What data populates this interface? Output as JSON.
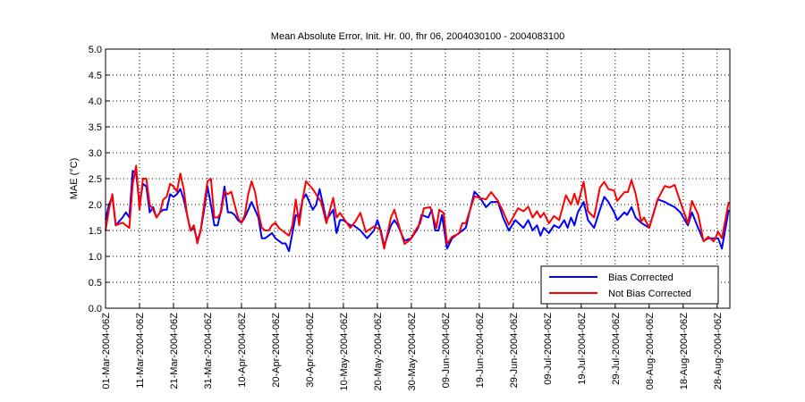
{
  "chart_data": {
    "type": "line",
    "title": "Mean Absolute Error, Init. Hr. 00, fhr 06, 2004030100 - 2004083100",
    "xlabel": "",
    "ylabel": "MAE (°C)",
    "x_unit": "days since 01-Mar-2004 06Z",
    "xlim": [
      0,
      183.75
    ],
    "ylim": [
      0,
      5
    ],
    "yticks": [
      "0.0",
      "0.5",
      "1.0",
      "1.5",
      "2.0",
      "2.5",
      "3.0",
      "3.5",
      "4.0",
      "4.5",
      "5.0"
    ],
    "xticks": [
      {
        "day": 0,
        "label": "01-Mar-2004-06Z"
      },
      {
        "day": 10,
        "label": "11-Mar-2004-06Z"
      },
      {
        "day": 20,
        "label": "21-Mar-2004-06Z"
      },
      {
        "day": 30,
        "label": "31-Mar-2004-06Z"
      },
      {
        "day": 40,
        "label": "10-Apr-2004-06Z"
      },
      {
        "day": 50,
        "label": "20-Apr-2004-06Z"
      },
      {
        "day": 60,
        "label": "30-Apr-2004-06Z"
      },
      {
        "day": 70,
        "label": "10-May-2004-06Z"
      },
      {
        "day": 80,
        "label": "20-May-2004-06Z"
      },
      {
        "day": 90,
        "label": "30-May-2004-06Z"
      },
      {
        "day": 100,
        "label": "09-Jun-2004-06Z"
      },
      {
        "day": 110,
        "label": "19-Jun-2004-06Z"
      },
      {
        "day": 120,
        "label": "29-Jun-2004-06Z"
      },
      {
        "day": 130,
        "label": "09-Jul-2004-06Z"
      },
      {
        "day": 140,
        "label": "19-Jul-2004-06Z"
      },
      {
        "day": 150,
        "label": "29-Jul-2004-06Z"
      },
      {
        "day": 160,
        "label": "08-Aug-2004-06Z"
      },
      {
        "day": 170,
        "label": "18-Aug-2004-06Z"
      },
      {
        "day": 180,
        "label": "28-Aug-2004-06Z"
      }
    ],
    "grid": true,
    "legend_position": "bottom-right",
    "series": [
      {
        "name": "Bias Corrected",
        "color": "#0000ff",
        "points": [
          [
            0,
            1.7
          ],
          [
            1,
            2.0
          ],
          [
            2,
            2.15
          ],
          [
            3,
            1.6
          ],
          [
            5,
            1.75
          ],
          [
            6,
            1.85
          ],
          [
            7,
            1.75
          ],
          [
            8,
            2.65
          ],
          [
            9,
            2.6
          ],
          [
            10,
            2.0
          ],
          [
            11,
            2.4
          ],
          [
            12,
            2.35
          ],
          [
            13,
            1.85
          ],
          [
            14,
            1.95
          ],
          [
            15,
            1.75
          ],
          [
            16,
            1.85
          ],
          [
            17,
            1.9
          ],
          [
            18,
            1.9
          ],
          [
            19,
            2.2
          ],
          [
            20,
            2.15
          ],
          [
            21,
            2.2
          ],
          [
            22,
            2.3
          ],
          [
            23,
            2.1
          ],
          [
            24,
            1.8
          ],
          [
            25,
            1.5
          ],
          [
            26,
            1.55
          ],
          [
            27,
            1.3
          ],
          [
            28,
            1.5
          ],
          [
            29,
            1.9
          ],
          [
            30,
            2.35
          ],
          [
            31,
            2.0
          ],
          [
            32,
            1.6
          ],
          [
            33,
            1.6
          ],
          [
            34,
            1.9
          ],
          [
            35,
            2.35
          ],
          [
            36,
            1.85
          ],
          [
            37,
            1.85
          ],
          [
            38,
            1.8
          ],
          [
            39,
            1.7
          ],
          [
            40,
            1.65
          ],
          [
            41,
            1.75
          ],
          [
            42,
            1.9
          ],
          [
            43,
            2.05
          ],
          [
            44,
            1.9
          ],
          [
            45,
            1.75
          ],
          [
            46,
            1.35
          ],
          [
            47,
            1.35
          ],
          [
            48,
            1.4
          ],
          [
            49,
            1.45
          ],
          [
            50,
            1.35
          ],
          [
            51,
            1.3
          ],
          [
            52,
            1.25
          ],
          [
            53,
            1.25
          ],
          [
            54,
            1.1
          ],
          [
            55,
            1.45
          ],
          [
            56,
            1.8
          ],
          [
            57,
            1.75
          ],
          [
            58,
            2.1
          ],
          [
            59,
            2.2
          ],
          [
            60,
            2.05
          ],
          [
            61,
            1.9
          ],
          [
            62,
            2.0
          ],
          [
            63,
            2.3
          ],
          [
            64,
            2.0
          ],
          [
            65,
            1.7
          ],
          [
            67,
            1.9
          ],
          [
            68,
            1.45
          ],
          [
            69,
            1.7
          ],
          [
            70,
            1.7
          ],
          [
            72,
            1.6
          ],
          [
            73,
            1.6
          ],
          [
            75,
            1.5
          ],
          [
            77,
            1.35
          ],
          [
            79,
            1.5
          ],
          [
            80,
            1.7
          ],
          [
            81,
            1.5
          ],
          [
            82,
            1.2
          ],
          [
            84,
            1.6
          ],
          [
            85,
            1.7
          ],
          [
            86,
            1.6
          ],
          [
            88,
            1.3
          ],
          [
            90,
            1.35
          ],
          [
            92,
            1.55
          ],
          [
            93,
            1.8
          ],
          [
            95,
            1.75
          ],
          [
            96,
            1.9
          ],
          [
            97,
            1.5
          ],
          [
            98,
            1.5
          ],
          [
            99,
            1.8
          ],
          [
            100.5,
            1.15
          ],
          [
            102,
            1.35
          ],
          [
            104,
            1.45
          ],
          [
            106,
            1.55
          ],
          [
            108.6,
            2.25
          ],
          [
            110,
            2.15
          ],
          [
            112,
            1.95
          ],
          [
            113.5,
            2.05
          ],
          [
            115.5,
            2.05
          ],
          [
            117,
            1.75
          ],
          [
            118.7,
            1.5
          ],
          [
            120.6,
            1.7
          ],
          [
            121.4,
            1.65
          ],
          [
            123,
            1.55
          ],
          [
            124.4,
            1.7
          ],
          [
            125.7,
            1.5
          ],
          [
            127,
            1.6
          ],
          [
            128,
            1.4
          ],
          [
            129,
            1.55
          ],
          [
            130.5,
            1.45
          ],
          [
            132,
            1.6
          ],
          [
            133.5,
            1.55
          ],
          [
            135,
            1.7
          ],
          [
            136,
            1.55
          ],
          [
            137,
            1.75
          ],
          [
            138,
            1.6
          ],
          [
            139,
            1.85
          ],
          [
            140.7,
            2.05
          ],
          [
            142,
            1.7
          ],
          [
            143.8,
            1.55
          ],
          [
            145.5,
            1.9
          ],
          [
            146.8,
            2.15
          ],
          [
            148,
            2.05
          ],
          [
            149.7,
            1.85
          ],
          [
            150.6,
            1.7
          ],
          [
            152.7,
            1.85
          ],
          [
            153.5,
            1.8
          ],
          [
            154.8,
            1.95
          ],
          [
            156,
            1.75
          ],
          [
            157.6,
            1.65
          ],
          [
            160,
            1.55
          ],
          [
            162.5,
            2.1
          ],
          [
            164.6,
            2.05
          ],
          [
            166,
            2.0
          ],
          [
            167.5,
            1.95
          ],
          [
            169.2,
            1.85
          ],
          [
            171.4,
            1.6
          ],
          [
            172.6,
            1.85
          ],
          [
            174.4,
            1.55
          ],
          [
            176,
            1.3
          ],
          [
            177.4,
            1.35
          ],
          [
            179,
            1.35
          ],
          [
            180.3,
            1.35
          ],
          [
            181.4,
            1.15
          ],
          [
            183.4,
            1.9
          ]
        ]
      },
      {
        "name": "Not Bias Corrected",
        "color": "#ff0000",
        "points": [
          [
            0,
            1.5
          ],
          [
            1,
            1.9
          ],
          [
            2,
            2.2
          ],
          [
            3,
            1.6
          ],
          [
            5,
            1.65
          ],
          [
            6,
            1.6
          ],
          [
            7,
            1.55
          ],
          [
            8,
            2.4
          ],
          [
            9,
            2.75
          ],
          [
            10,
            1.9
          ],
          [
            11,
            2.5
          ],
          [
            12,
            2.5
          ],
          [
            13,
            2.0
          ],
          [
            14,
            1.9
          ],
          [
            15,
            1.75
          ],
          [
            16,
            1.85
          ],
          [
            17,
            2.1
          ],
          [
            18,
            2.15
          ],
          [
            19,
            2.4
          ],
          [
            20,
            2.35
          ],
          [
            21,
            2.25
          ],
          [
            22,
            2.6
          ],
          [
            23,
            2.3
          ],
          [
            24,
            1.8
          ],
          [
            25,
            1.5
          ],
          [
            26,
            1.6
          ],
          [
            27,
            1.25
          ],
          [
            28,
            1.5
          ],
          [
            29,
            2.0
          ],
          [
            30,
            2.45
          ],
          [
            31,
            2.5
          ],
          [
            32,
            1.75
          ],
          [
            33,
            1.75
          ],
          [
            34,
            1.85
          ],
          [
            35,
            2.25
          ],
          [
            36,
            2.2
          ],
          [
            37,
            2.25
          ],
          [
            38,
            2.0
          ],
          [
            39,
            1.75
          ],
          [
            40,
            1.65
          ],
          [
            41,
            1.8
          ],
          [
            42,
            2.2
          ],
          [
            43,
            2.45
          ],
          [
            44,
            2.25
          ],
          [
            45,
            1.85
          ],
          [
            46,
            1.55
          ],
          [
            47,
            1.5
          ],
          [
            48,
            1.5
          ],
          [
            49,
            1.6
          ],
          [
            50,
            1.65
          ],
          [
            51,
            1.55
          ],
          [
            52,
            1.5
          ],
          [
            53,
            1.45
          ],
          [
            54,
            1.4
          ],
          [
            55,
            1.6
          ],
          [
            56,
            2.1
          ],
          [
            57,
            1.6
          ],
          [
            58,
            2.1
          ],
          [
            59,
            2.45
          ],
          [
            61,
            2.3
          ],
          [
            63.5,
            2.04
          ],
          [
            65,
            1.64
          ],
          [
            67,
            2.13
          ],
          [
            68,
            1.75
          ],
          [
            69,
            1.84
          ],
          [
            72,
            1.55
          ],
          [
            73.5,
            1.67
          ],
          [
            75,
            1.84
          ],
          [
            76.6,
            1.47
          ],
          [
            79,
            1.58
          ],
          [
            80.8,
            1.52
          ],
          [
            82,
            1.15
          ],
          [
            84,
            1.75
          ],
          [
            85,
            1.9
          ],
          [
            86,
            1.67
          ],
          [
            88,
            1.24
          ],
          [
            89.7,
            1.32
          ],
          [
            91.4,
            1.52
          ],
          [
            92.6,
            1.64
          ],
          [
            93.7,
            1.93
          ],
          [
            95.6,
            1.95
          ],
          [
            97.4,
            1.55
          ],
          [
            98.2,
            1.9
          ],
          [
            99.5,
            1.84
          ],
          [
            100.5,
            1.24
          ],
          [
            102,
            1.38
          ],
          [
            104,
            1.44
          ],
          [
            105,
            1.64
          ],
          [
            106,
            1.64
          ],
          [
            108.6,
            2.16
          ],
          [
            110,
            2.13
          ],
          [
            112,
            2.1
          ],
          [
            113.5,
            2.24
          ],
          [
            115.5,
            2.07
          ],
          [
            117,
            1.87
          ],
          [
            118.7,
            1.61
          ],
          [
            121.4,
            1.93
          ],
          [
            123,
            1.87
          ],
          [
            124.4,
            1.96
          ],
          [
            125.7,
            1.75
          ],
          [
            127,
            1.87
          ],
          [
            128,
            1.75
          ],
          [
            129,
            1.84
          ],
          [
            130.5,
            1.64
          ],
          [
            132,
            1.78
          ],
          [
            133.5,
            1.7
          ],
          [
            135.5,
            2.18
          ],
          [
            137,
            2.0
          ],
          [
            138,
            2.21
          ],
          [
            139,
            2.0
          ],
          [
            140.7,
            2.44
          ],
          [
            142,
            1.87
          ],
          [
            143.8,
            1.75
          ],
          [
            145.5,
            2.33
          ],
          [
            146.8,
            2.44
          ],
          [
            148,
            2.3
          ],
          [
            149.7,
            2.27
          ],
          [
            150.6,
            2.07
          ],
          [
            152.7,
            2.24
          ],
          [
            153.7,
            2.24
          ],
          [
            154.8,
            2.47
          ],
          [
            156,
            2.21
          ],
          [
            157.6,
            1.67
          ],
          [
            158.5,
            1.75
          ],
          [
            160,
            1.55
          ],
          [
            162.5,
            2.1
          ],
          [
            164.6,
            2.36
          ],
          [
            166,
            2.33
          ],
          [
            167.5,
            2.38
          ],
          [
            169.2,
            2.05
          ],
          [
            171.4,
            1.64
          ],
          [
            172.6,
            2.07
          ],
          [
            174.4,
            1.81
          ],
          [
            176,
            1.29
          ],
          [
            177.4,
            1.38
          ],
          [
            179,
            1.29
          ],
          [
            180.3,
            1.47
          ],
          [
            181.4,
            1.35
          ],
          [
            183.4,
            2.05
          ]
        ]
      }
    ]
  }
}
